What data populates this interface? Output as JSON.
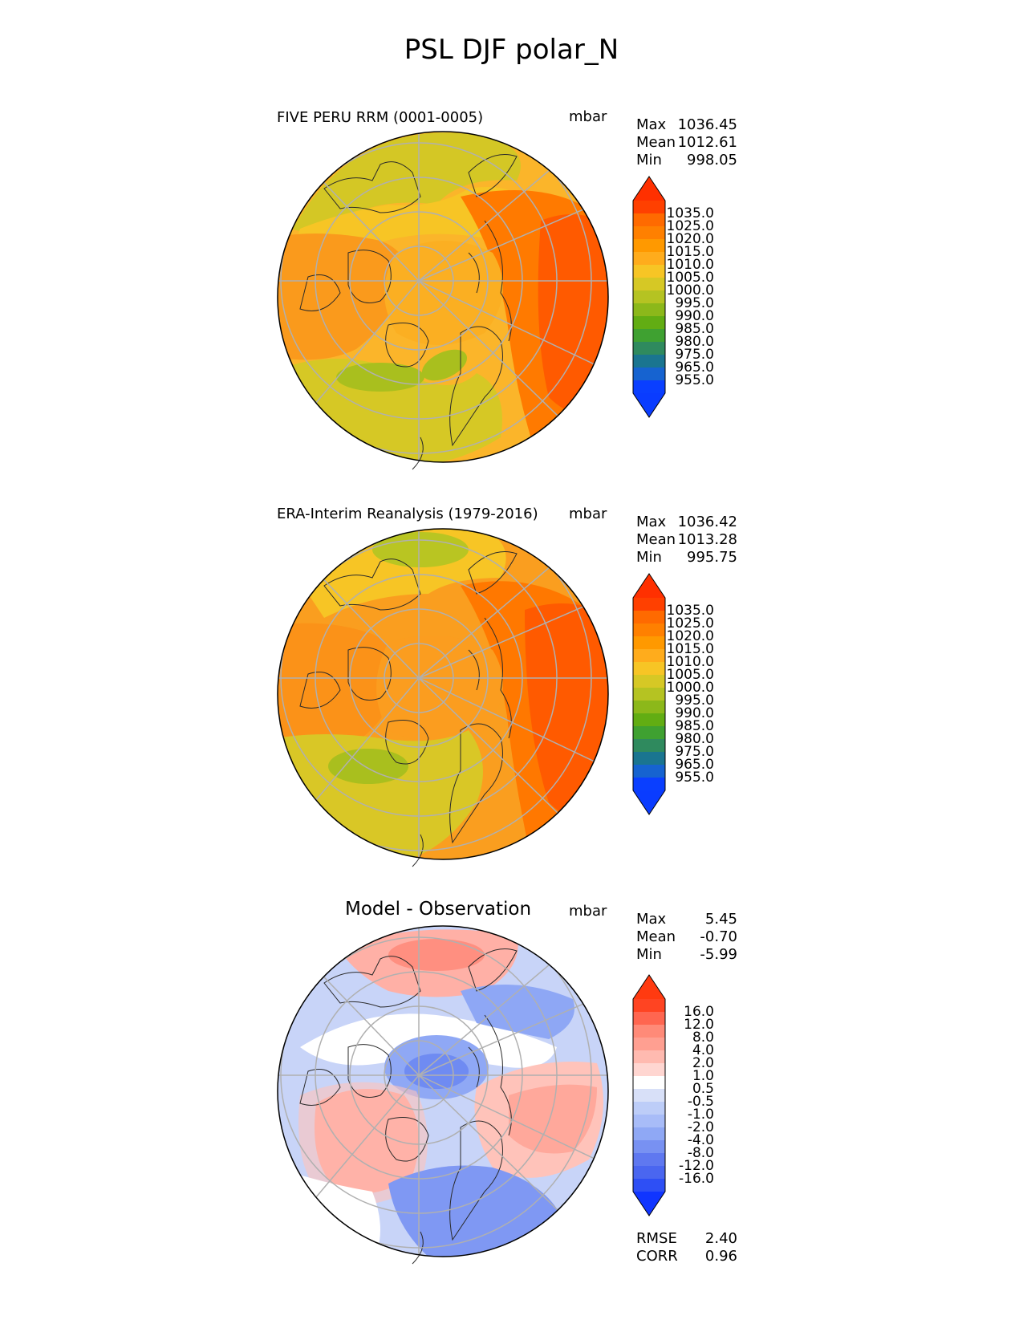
{
  "title": "PSL DJF polar_N",
  "units": "mbar",
  "stat_labels": {
    "max": "Max",
    "mean": "Mean",
    "min": "Min",
    "rmse": "RMSE",
    "corr": "CORR"
  },
  "panels": [
    {
      "name": "model",
      "title": "FIVE PERU RRM (0001-0005)",
      "max": "1036.45",
      "mean": "1012.61",
      "min": "998.05"
    },
    {
      "name": "obs",
      "title": "ERA-Interim Reanalysis (1979-2016)",
      "max": "1036.42",
      "mean": "1013.28",
      "min": "995.75"
    },
    {
      "name": "diff",
      "title": "Model - Observation",
      "max": "5.45",
      "mean": "-0.70",
      "min": "-5.99"
    }
  ],
  "metrics": {
    "rmse": "2.40",
    "corr": "0.96"
  },
  "colorbar_psl": {
    "ticks": [
      "1035.0",
      "1025.0",
      "1020.0",
      "1015.0",
      "1010.0",
      "1005.0",
      "1000.0",
      "995.0",
      "990.0",
      "985.0",
      "980.0",
      "975.0",
      "965.0",
      "955.0"
    ],
    "colors": [
      "#ff4000",
      "#ff6a00",
      "#ff8000",
      "#ff9900",
      "#ffac1c",
      "#f7c525",
      "#d6c825",
      "#b5c322",
      "#8cb81a",
      "#62ad13",
      "#3fa131",
      "#2f8a5e",
      "#1a7590",
      "#1663d0",
      "#0a3fff"
    ],
    "top_color": "#ff3000",
    "bottom_color": "#0a3cff"
  },
  "colorbar_diff": {
    "ticks": [
      "16.0",
      "12.0",
      "8.0",
      "4.0",
      "2.0",
      "1.0",
      "0.5",
      "-0.5",
      "-1.0",
      "-2.0",
      "-4.0",
      "-8.0",
      "-12.0",
      "-16.0"
    ],
    "colors": [
      "#ff4422",
      "#ff6650",
      "#ff8a78",
      "#ff9f91",
      "#ffbab0",
      "#ffd6d1",
      "#ffffff",
      "#d8e0f8",
      "#bdcdf8",
      "#a8bcf8",
      "#8fa8f5",
      "#7891f2",
      "#5f78f0",
      "#4a66f0",
      "#2e4ff5"
    ],
    "top_color": "#ff3a10",
    "bottom_color": "#1035ff"
  },
  "colors": {
    "model_base": "#fbb52a",
    "obs_base": "#fa9e1f",
    "diff_base": "#c8d4f8",
    "graticule": "#b0b0b0",
    "coast": "#2a2a2a"
  }
}
